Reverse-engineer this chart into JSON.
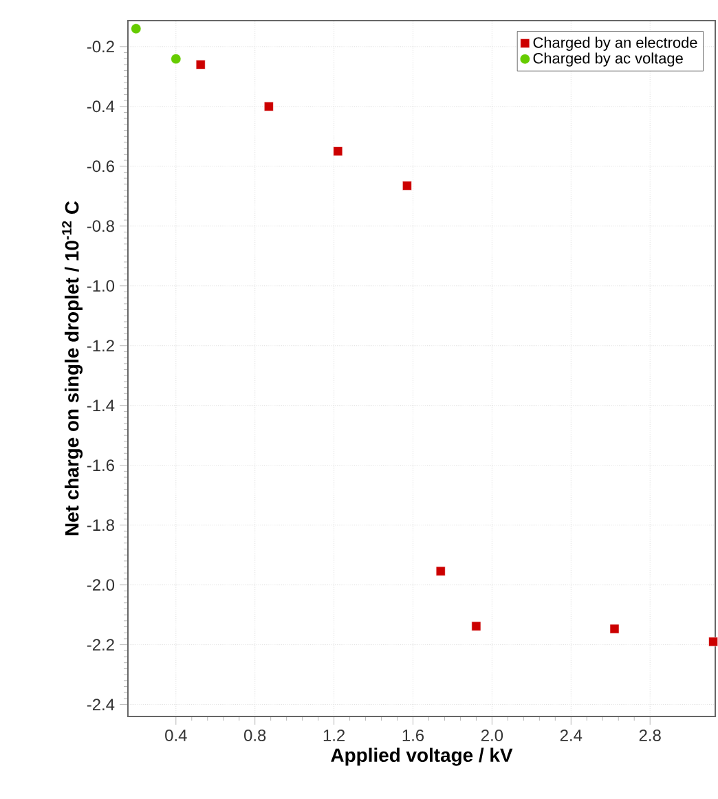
{
  "chart_data": {
    "type": "scatter",
    "xlabel": "Applied voltage / kV",
    "ylabel": "Net charge on single droplet / 10$^{-12}$ C",
    "xlim": [
      0.157,
      3.13
    ],
    "ylim": [
      -2.44,
      -0.113
    ],
    "xticks": [
      0.4,
      0.8,
      1.2,
      1.6,
      {
        "value": 2.0,
        "label": "2.0"
      },
      2.4,
      2.8
    ],
    "yticks": [
      -0.2,
      -0.4,
      -0.6,
      -0.8,
      {
        "value": -1.0,
        "label": "-1.0"
      },
      -1.2,
      -1.4,
      -1.6,
      -1.8,
      {
        "value": -2.0,
        "label": "-2.0"
      },
      -2.2,
      -2.4
    ],
    "grid": true,
    "legend": "top right",
    "series": [
      {
        "name": "Charged by an electrode",
        "color": "#cc0000",
        "marker": "square",
        "x": [
          0.525,
          0.87,
          1.22,
          1.57,
          1.74,
          1.92,
          2.62,
          3.12
        ],
        "values": [
          -0.26,
          -0.4,
          -0.55,
          -0.665,
          -1.954,
          -2.138,
          -2.147,
          -2.19
        ]
      },
      {
        "name": "Charged by ac voltage",
        "color": "#66cc00",
        "marker": "circle",
        "x": [
          0.198,
          0.4
        ],
        "values": [
          -0.14,
          -0.241
        ]
      }
    ]
  }
}
